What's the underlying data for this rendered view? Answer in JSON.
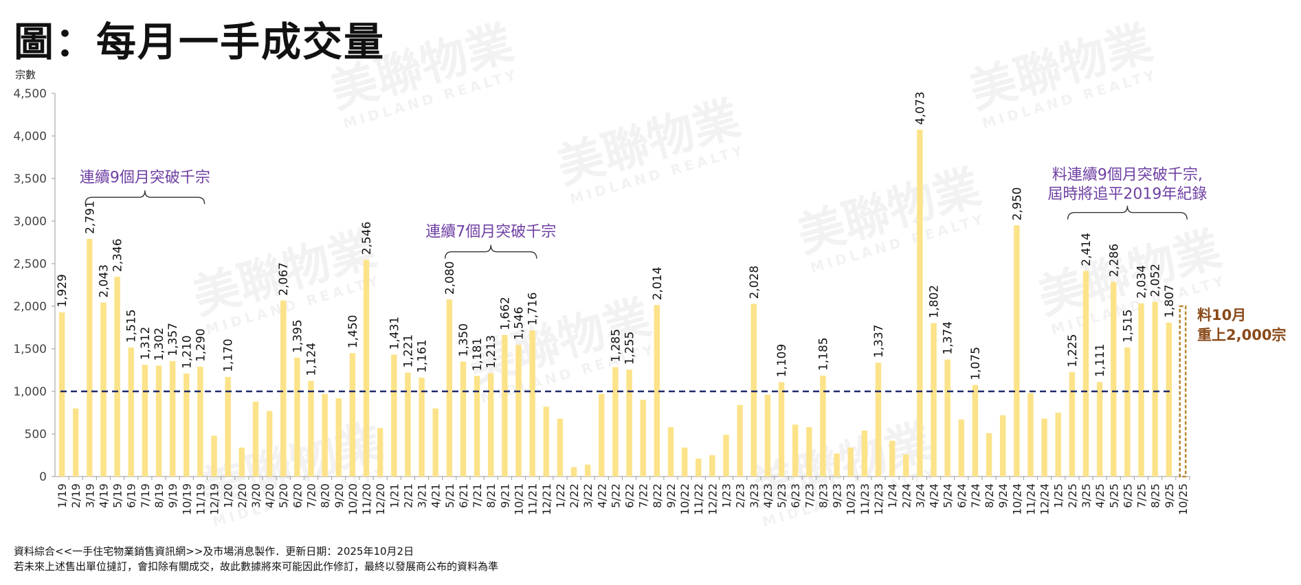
{
  "title": "圖：每月一手成交量",
  "chart_data": {
    "type": "bar",
    "ylabel": "宗數",
    "ylim": [
      0,
      4500
    ],
    "yticks": [
      "0",
      "500",
      "1,000",
      "1,500",
      "2,000",
      "2,500",
      "3,000",
      "3,500",
      "4,000",
      "4,500"
    ],
    "ytick_values": [
      0,
      500,
      1000,
      1500,
      2000,
      2500,
      3000,
      3500,
      4000,
      4500
    ],
    "categories": [
      "1/19",
      "2/19",
      "3/19",
      "4/19",
      "5/19",
      "6/19",
      "7/19",
      "8/19",
      "9/19",
      "10/19",
      "11/19",
      "12/19",
      "1/20",
      "2/20",
      "3/20",
      "4/20",
      "5/20",
      "6/20",
      "7/20",
      "8/20",
      "9/20",
      "10/20",
      "11/20",
      "12/20",
      "1/21",
      "2/21",
      "3/21",
      "4/21",
      "5/21",
      "6/21",
      "7/21",
      "8/21",
      "9/21",
      "10/21",
      "11/21",
      "12/21",
      "1/22",
      "2/22",
      "3/22",
      "4/22",
      "5/22",
      "6/22",
      "7/22",
      "8/22",
      "9/22",
      "10/22",
      "11/22",
      "12/22",
      "1/23",
      "2/23",
      "3/23",
      "4/23",
      "5/23",
      "6/23",
      "7/23",
      "8/23",
      "9/23",
      "10/23",
      "11/23",
      "12/23",
      "1/24",
      "2/24",
      "3/24",
      "4/24",
      "5/24",
      "6/24",
      "7/24",
      "8/24",
      "9/24",
      "10/24",
      "11/24",
      "12/24",
      "1/25",
      "2/25",
      "3/25",
      "4/25",
      "5/25",
      "6/25",
      "7/25",
      "8/25",
      "9/25",
      "10/25"
    ],
    "values": [
      1929,
      800,
      2791,
      2043,
      2346,
      1515,
      1312,
      1302,
      1357,
      1210,
      1290,
      480,
      1170,
      340,
      880,
      770,
      2067,
      1395,
      1124,
      970,
      920,
      1450,
      2546,
      570,
      1431,
      1221,
      1161,
      800,
      2080,
      1350,
      1181,
      1213,
      1662,
      1546,
      1716,
      820,
      680,
      110,
      140,
      970,
      1285,
      1255,
      900,
      2014,
      580,
      340,
      210,
      250,
      490,
      840,
      2028,
      960,
      1109,
      610,
      580,
      1185,
      270,
      340,
      540,
      1337,
      420,
      260,
      4073,
      1802,
      1374,
      670,
      1075,
      510,
      720,
      2950,
      980,
      680,
      750,
      1225,
      2414,
      1111,
      2286,
      1515,
      2034,
      2052,
      1807,
      2000
    ],
    "value_labels": {
      "0": "1,929",
      "2": "2,791",
      "3": "2,043",
      "4": "2,346",
      "5": "1,515",
      "6": "1,312",
      "7": "1,302",
      "8": "1,357",
      "9": "1,210",
      "10": "1,290",
      "12": "1,170",
      "16": "2,067",
      "17": "1,395",
      "18": "1,124",
      "21": "1,450",
      "22": "2,546",
      "24": "1,431",
      "25": "1,221",
      "26": "1,161",
      "28": "2,080",
      "29": "1,350",
      "30": "1,181",
      "31": "1,213",
      "32": "1,662",
      "33": "1,546",
      "34": "1,716",
      "40": "1,285",
      "41": "1,255",
      "43": "2,014",
      "50": "2,028",
      "52": "1,109",
      "55": "1,185",
      "59": "1,337",
      "62": "4,073",
      "63": "1,802",
      "64": "1,374",
      "66": "1,075",
      "69": "2,950",
      "73": "1,225",
      "74": "2,414",
      "75": "1,111",
      "76": "2,286",
      "77": "1,515",
      "78": "2,034",
      "79": "2,052",
      "80": "1,807"
    },
    "forecast_index": 81,
    "reference_line": 1000,
    "annotations": [
      {
        "text": "連續9個月突破千宗",
        "from": 2,
        "to": 10,
        "level": 3280,
        "line2": ""
      },
      {
        "text": "連續7個月突破千宗",
        "from": 28,
        "to": 34,
        "level": 2640,
        "line2": ""
      },
      {
        "text": "料連續9個月突破千宗,",
        "from": 73,
        "to": 81,
        "level": 3100,
        "line2": "屆時將追平2019年紀錄"
      }
    ],
    "forecast_note": [
      "料10月",
      "重上2,000宗"
    ],
    "colors": {
      "bar": "#FCE38A",
      "forecast": "#B8862E",
      "reference": "#1F2A6B",
      "annotation": "#6E3FA3",
      "note": "#8A4A1A",
      "axis": "#9a9a9a"
    }
  },
  "watermark": {
    "brand": "美聯物業",
    "sub": "MIDLAND REALTY"
  },
  "footnotes": [
    "資料綜合<<一手住宅物業銷售資訊網>>及市場消息製作．更新日期：2025年10月2日",
    "若未來上述售出單位撻訂，會扣除有關成交，故此數據將來可能因此作修訂，最終以發展商公布的資料為準"
  ]
}
